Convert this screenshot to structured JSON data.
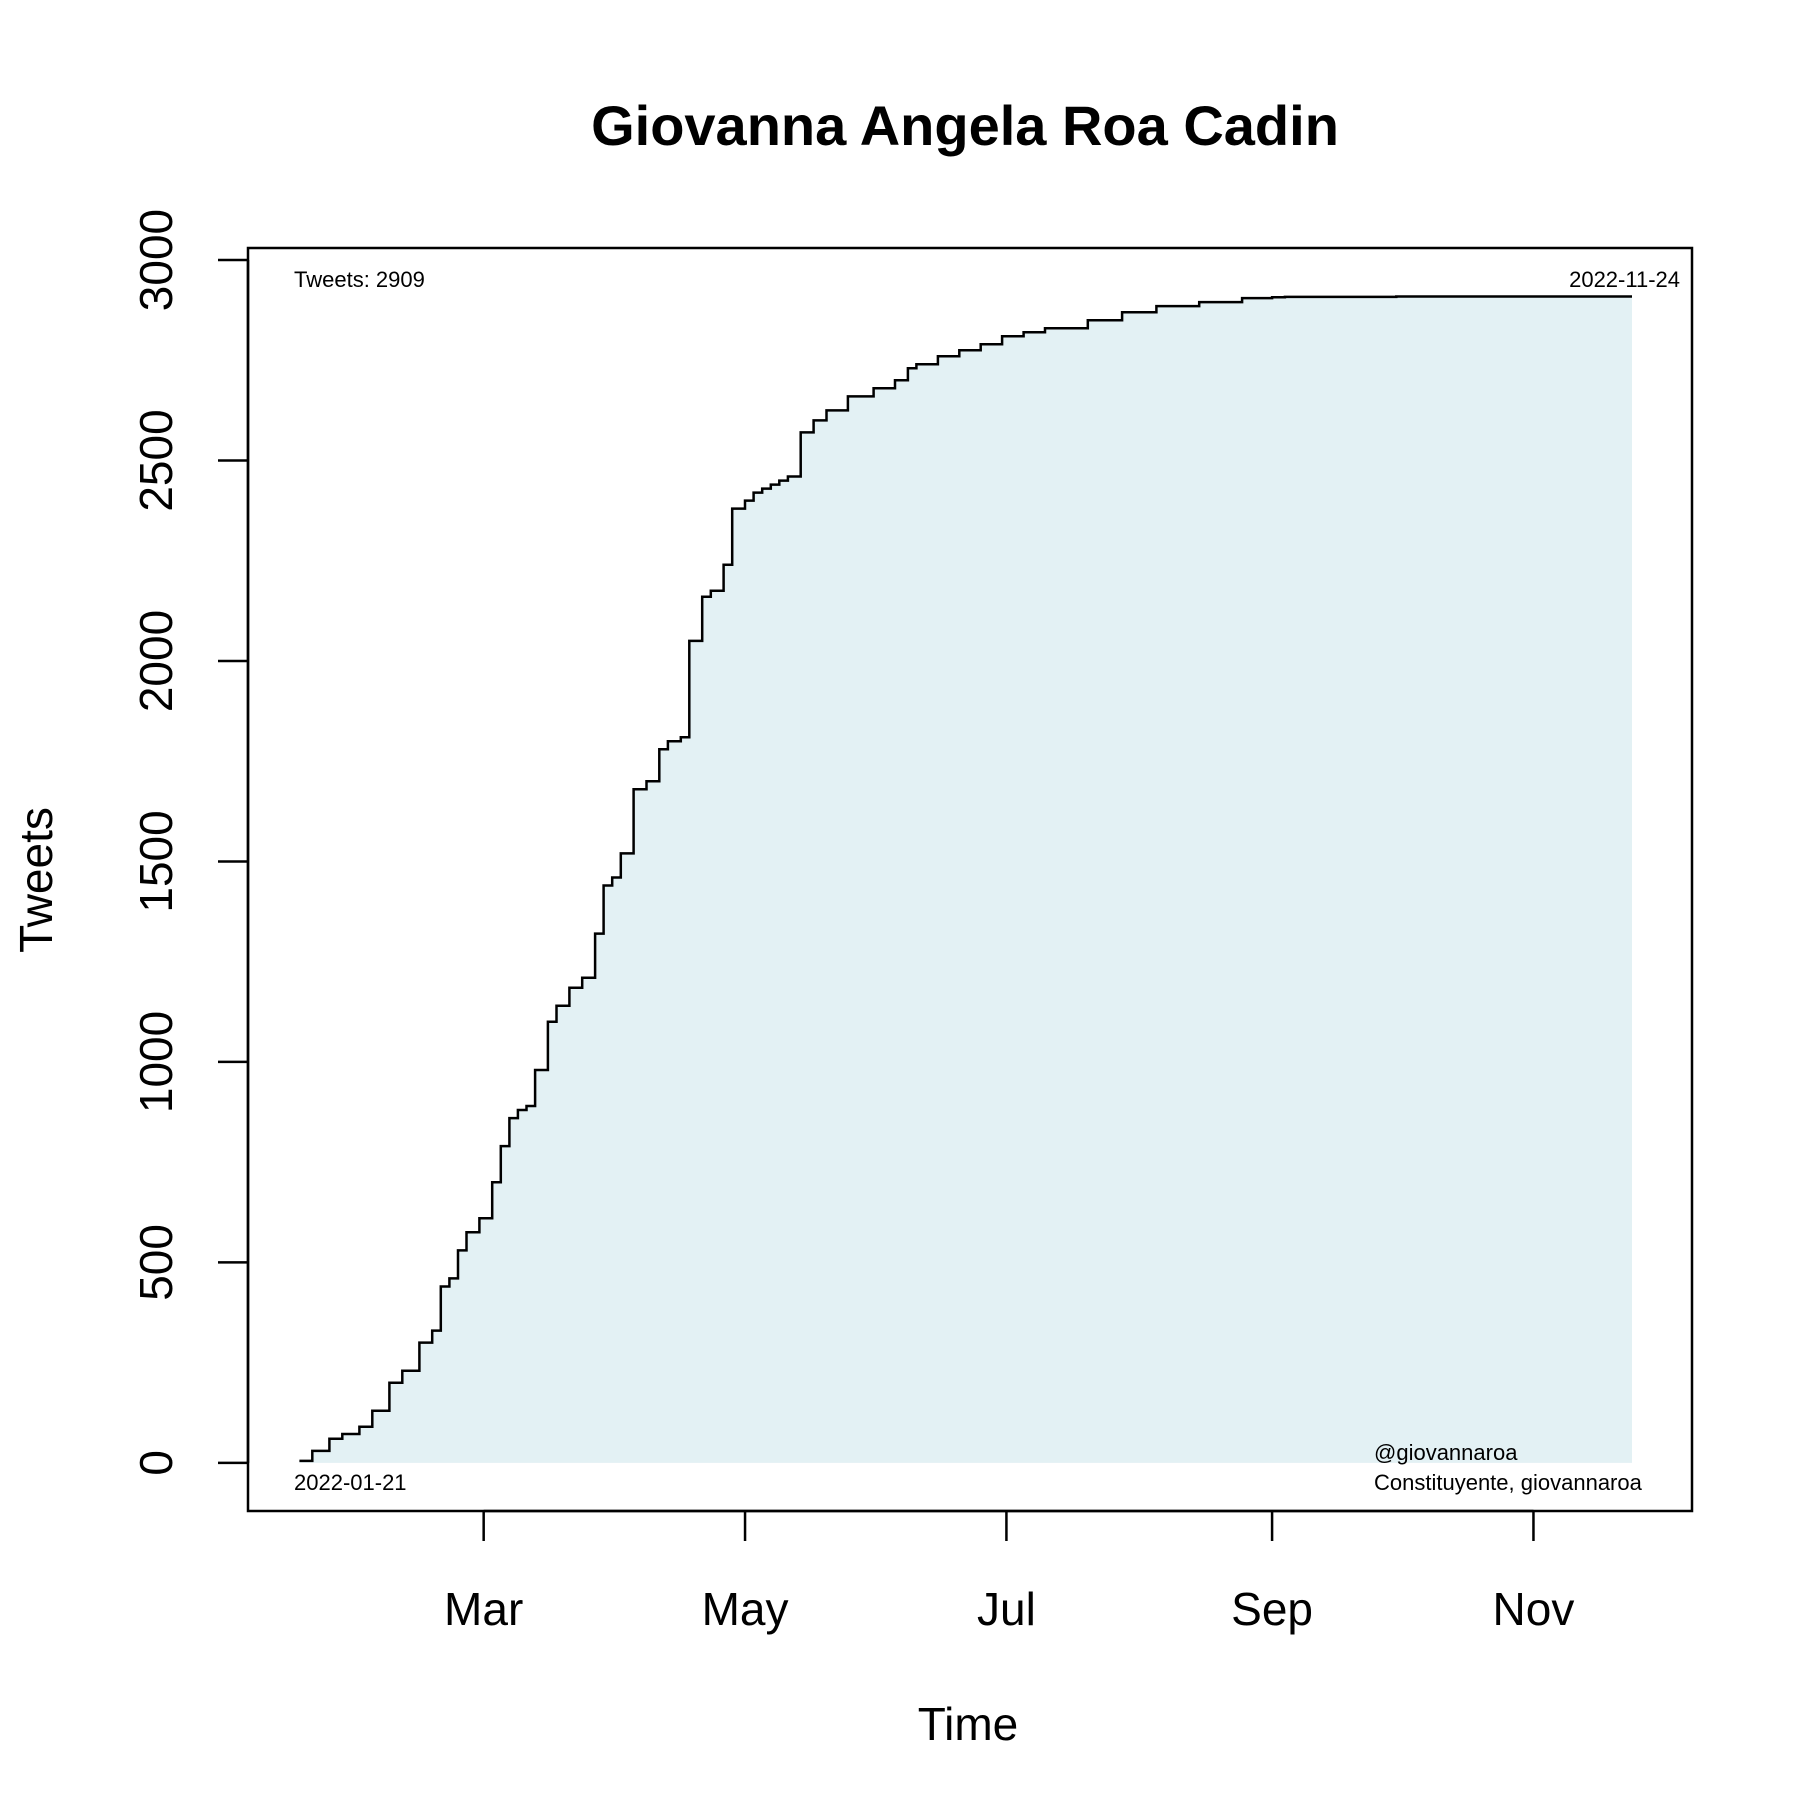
{
  "chart_data": {
    "type": "line",
    "title": "Giovanna Angela Roa Cadin",
    "xlabel": "Time",
    "ylabel": "Tweets",
    "xlim": [
      "2022-01-05",
      "2022-12-08"
    ],
    "ylim": [
      -120,
      3030
    ],
    "y_ticks": [
      0,
      500,
      1000,
      1500,
      2000,
      2500,
      3000
    ],
    "x_ticks": [
      {
        "date": "2022-03-01",
        "label": "Mar"
      },
      {
        "date": "2022-05-01",
        "label": "May"
      },
      {
        "date": "2022-07-01",
        "label": "Jul"
      },
      {
        "date": "2022-09-01",
        "label": "Sep"
      },
      {
        "date": "2022-11-01",
        "label": "Nov"
      }
    ],
    "grid": false,
    "fill": "#e3f1f4",
    "line_color": "#000000",
    "annotations": {
      "top_left": "Tweets: 2909",
      "top_right": "2022-11-24",
      "bottom_left": "2022-01-21",
      "bottom_right_1": "@giovannaroa",
      "bottom_right_2": "Constituyente, giovannaroa"
    },
    "series": [
      {
        "x": [
          "2022-01-17",
          "2022-01-20",
          "2022-01-24",
          "2022-01-27",
          "2022-01-31",
          "2022-02-03",
          "2022-02-07",
          "2022-02-10",
          "2022-02-14",
          "2022-02-17",
          "2022-02-19",
          "2022-02-21",
          "2022-02-23",
          "2022-02-25",
          "2022-02-28",
          "2022-03-03",
          "2022-03-05",
          "2022-03-07",
          "2022-03-09",
          "2022-03-11",
          "2022-03-13",
          "2022-03-16",
          "2022-03-18",
          "2022-03-21",
          "2022-03-24",
          "2022-03-27",
          "2022-03-29",
          "2022-03-31",
          "2022-04-02",
          "2022-04-05",
          "2022-04-08",
          "2022-04-11",
          "2022-04-13",
          "2022-04-16",
          "2022-04-18",
          "2022-04-21",
          "2022-04-23",
          "2022-04-26",
          "2022-04-28",
          "2022-05-01",
          "2022-05-03",
          "2022-05-05",
          "2022-05-07",
          "2022-05-09",
          "2022-05-11",
          "2022-05-14",
          "2022-05-17",
          "2022-05-20",
          "2022-05-25",
          "2022-05-31",
          "2022-06-05",
          "2022-06-08",
          "2022-06-10",
          "2022-06-15",
          "2022-06-20",
          "2022-06-25",
          "2022-06-30",
          "2022-07-05",
          "2022-07-10",
          "2022-07-20",
          "2022-07-28",
          "2022-08-05",
          "2022-08-15",
          "2022-08-25",
          "2022-09-01",
          "2022-09-04",
          "2022-09-10",
          "2022-09-30",
          "2022-10-31",
          "2022-11-24"
        ],
        "y": [
          5,
          30,
          60,
          72,
          90,
          130,
          200,
          230,
          300,
          330,
          440,
          460,
          530,
          575,
          610,
          700,
          790,
          860,
          880,
          890,
          980,
          1100,
          1140,
          1185,
          1210,
          1320,
          1440,
          1460,
          1520,
          1680,
          1700,
          1780,
          1800,
          1810,
          2050,
          2160,
          2175,
          2240,
          2380,
          2400,
          2420,
          2430,
          2440,
          2450,
          2460,
          2570,
          2600,
          2625,
          2660,
          2680,
          2700,
          2730,
          2740,
          2760,
          2775,
          2790,
          2810,
          2820,
          2830,
          2850,
          2870,
          2885,
          2895,
          2905,
          2907,
          2908,
          2908,
          2909,
          2909,
          2909
        ]
      }
    ]
  }
}
